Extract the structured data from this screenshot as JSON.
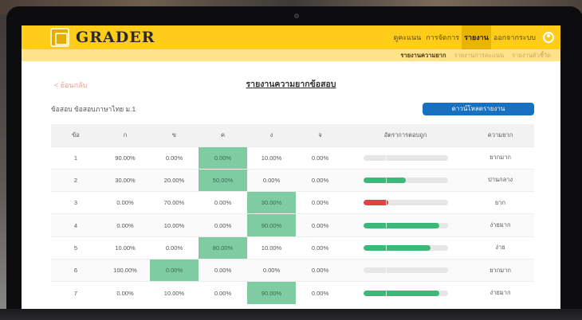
{
  "header": {
    "brand": "GRADER",
    "nav": [
      {
        "label": "ดูคะแนน",
        "active": false
      },
      {
        "label": "การจัดการ",
        "active": false
      },
      {
        "label": "รายงาน",
        "active": true
      },
      {
        "label": "ออกจากระบบ",
        "active": false
      }
    ],
    "user_icon": "user-circle-icon"
  },
  "subnav": [
    {
      "label": "รายงานความยาก",
      "active": true
    },
    {
      "label": "รายงานการคะแนน",
      "active": false
    },
    {
      "label": "รายงานตัวชี้วัด",
      "active": false
    }
  ],
  "page": {
    "back": "< ย้อนกลับ",
    "title": "รายงานความยากข้อสอบ",
    "exam_label": "ข้อสอบ ข้อสอบภาษาไทย ม.1",
    "download": "ดาวน์โหลดรายงาน"
  },
  "table": {
    "headers": [
      "ข้อ",
      "ก",
      "ข",
      "ค",
      "ง",
      "จ",
      "อัตราการตอบถูก",
      "ความยาก"
    ],
    "rows": [
      {
        "no": "1",
        "a": "90.00%",
        "b": "0.00%",
        "c": "0.00%",
        "d": "10.00%",
        "e": "0.00%",
        "correct": "c",
        "rate": 0.0,
        "bar_color": "#3cb878",
        "difficulty": "ยากมาก"
      },
      {
        "no": "2",
        "a": "30.00%",
        "b": "20.00%",
        "c": "50.00%",
        "d": "0.00%",
        "e": "0.00%",
        "correct": "c",
        "rate": 0.5,
        "bar_color": "#3cb878",
        "difficulty": "ปานกลาง"
      },
      {
        "no": "3",
        "a": "0.00%",
        "b": "70.00%",
        "c": "0.00%",
        "d": "30.00%",
        "e": "0.00%",
        "correct": "d",
        "rate": 0.3,
        "bar_color": "#e04545",
        "difficulty": "ยาก"
      },
      {
        "no": "4",
        "a": "0.00%",
        "b": "10.00%",
        "c": "0.00%",
        "d": "90.00%",
        "e": "0.00%",
        "correct": "d",
        "rate": 0.9,
        "bar_color": "#3cb878",
        "difficulty": "ง่ายมาก"
      },
      {
        "no": "5",
        "a": "10.00%",
        "b": "0.00%",
        "c": "80.00%",
        "d": "10.00%",
        "e": "0.00%",
        "correct": "c",
        "rate": 0.8,
        "bar_color": "#3cb878",
        "difficulty": "ง่าย"
      },
      {
        "no": "6",
        "a": "100.00%",
        "b": "0.00%",
        "c": "0.00%",
        "d": "0.00%",
        "e": "0.00%",
        "correct": "b",
        "rate": 0.0,
        "bar_color": "#3cb878",
        "difficulty": "ยากมาก"
      },
      {
        "no": "7",
        "a": "0.00%",
        "b": "10.00%",
        "c": "0.00%",
        "d": "90.00%",
        "e": "0.00%",
        "correct": "d",
        "rate": 0.9,
        "bar_color": "#3cb878",
        "difficulty": "ง่ายมาก"
      }
    ]
  }
}
